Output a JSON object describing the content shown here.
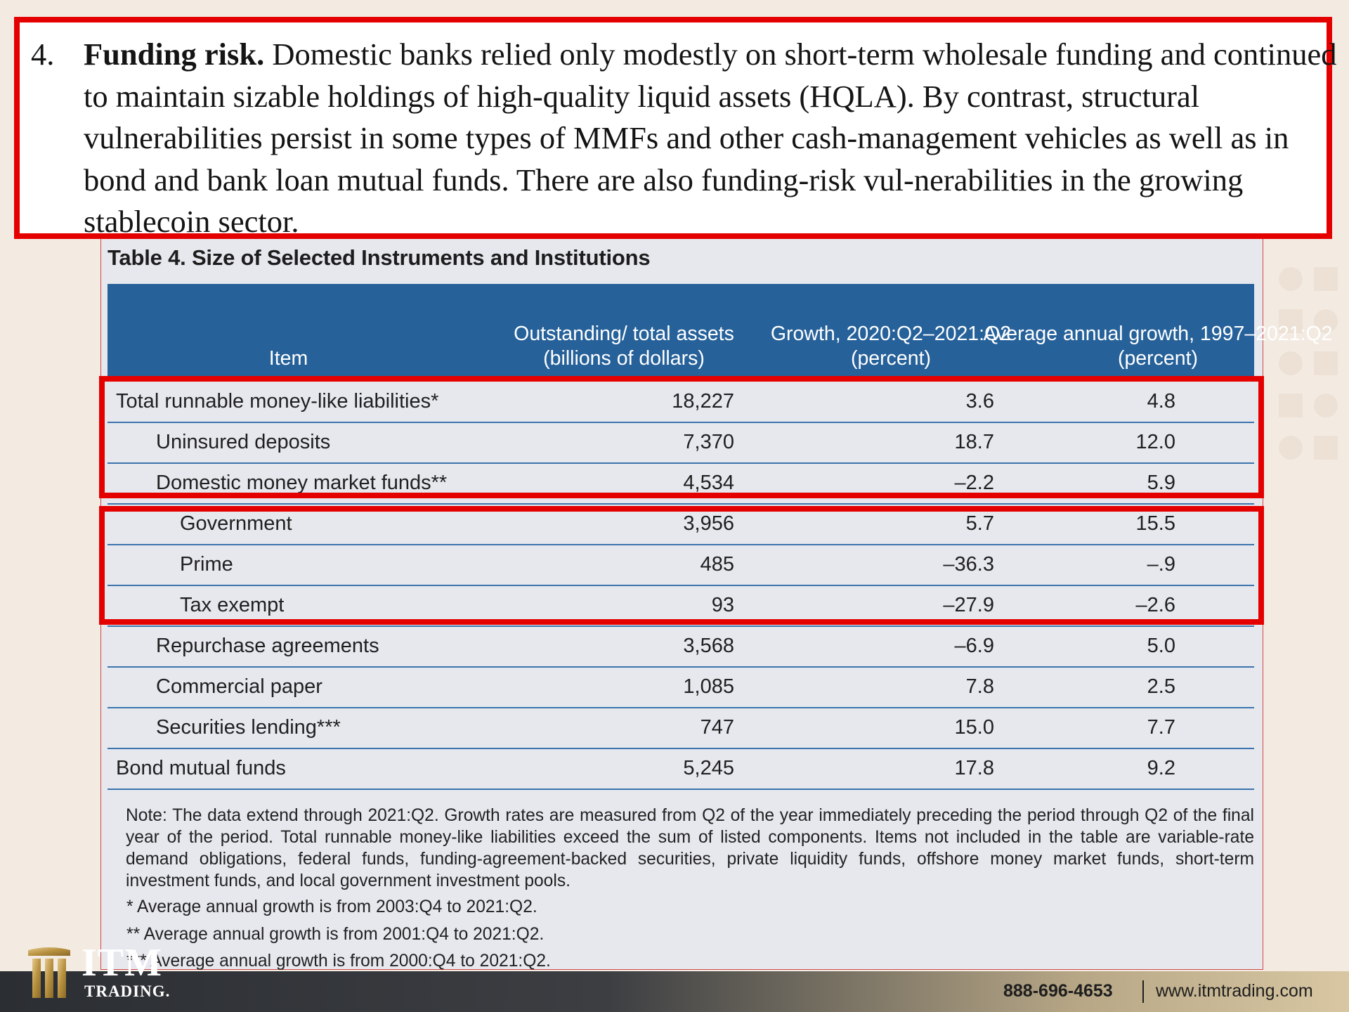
{
  "paragraph": {
    "number": "4.",
    "heading": "Funding risk.",
    "text": " Domestic banks relied only modestly on short-term wholesale funding and continued to maintain sizable holdings of high-quality liquid assets (HQLA). By contrast, structural vulnerabilities persist in some types of MMFs and other cash-management vehicles as well as in bond and bank loan mutual funds. There are also funding-risk vul-nerabilities in the growing stablecoin sector."
  },
  "table": {
    "title": "Table 4. Size of Selected Instruments and Institutions",
    "headers": {
      "item": "Item",
      "outstanding": "Outstanding/ total assets (billions of dollars)",
      "growth": "Growth, 2020:Q2–2021:Q2 (percent)",
      "avg_growth": "Average annual growth, 1997–2021:Q2 (percent)"
    },
    "rows": [
      {
        "item": "Total runnable money-like liabilities*",
        "outstanding": "18,227",
        "growth": "3.6",
        "avg": "4.8"
      },
      {
        "item": "Uninsured deposits",
        "outstanding": "7,370",
        "growth": "18.7",
        "avg": "12.0"
      },
      {
        "item": "Domestic money market funds**",
        "outstanding": "4,534",
        "growth": "–2.2",
        "avg": "5.9"
      },
      {
        "item": "Government",
        "outstanding": "3,956",
        "growth": "5.7",
        "avg": "15.5"
      },
      {
        "item": "Prime",
        "outstanding": "485",
        "growth": "–36.3",
        "avg": "–.9"
      },
      {
        "item": "Tax exempt",
        "outstanding": "93",
        "growth": "–27.9",
        "avg": "–2.6"
      },
      {
        "item": "Repurchase agreements",
        "outstanding": "3,568",
        "growth": "–6.9",
        "avg": "5.0"
      },
      {
        "item": "Commercial paper",
        "outstanding": "1,085",
        "growth": "7.8",
        "avg": "2.5"
      },
      {
        "item": "Securities lending***",
        "outstanding": "747",
        "growth": "15.0",
        "avg": "7.7"
      },
      {
        "item": "Bond mutual funds",
        "outstanding": "5,245",
        "growth": "17.8",
        "avg": "9.2"
      }
    ],
    "note": "Note: The data extend through 2021:Q2. Growth rates are measured from Q2 of the year immediately preceding the period through Q2 of the final year of the period. Total runnable money-like liabilities exceed the sum of listed components. Items not included in the table are variable-rate demand obligations, federal funds, funding-agreement-backed securities, private liquidity funds, offshore money market funds, short-term investment funds, and local government investment pools.",
    "footnotes": [
      "* Average annual growth is from 2003:Q4 to 2021:Q2.",
      "** Average annual growth is from 2001:Q4 to 2021:Q2.",
      "*** Average annual growth is from 2000:Q4 to 2021:Q2."
    ]
  },
  "footer": {
    "logo_top": "ITM",
    "logo_bottom": "TRADING.",
    "phone": "888-696-4653",
    "website": "www.itmtrading.com"
  },
  "colors": {
    "highlight": "#e50000",
    "header_bg": "#26619a",
    "panel_bg": "#e6e8ee"
  }
}
